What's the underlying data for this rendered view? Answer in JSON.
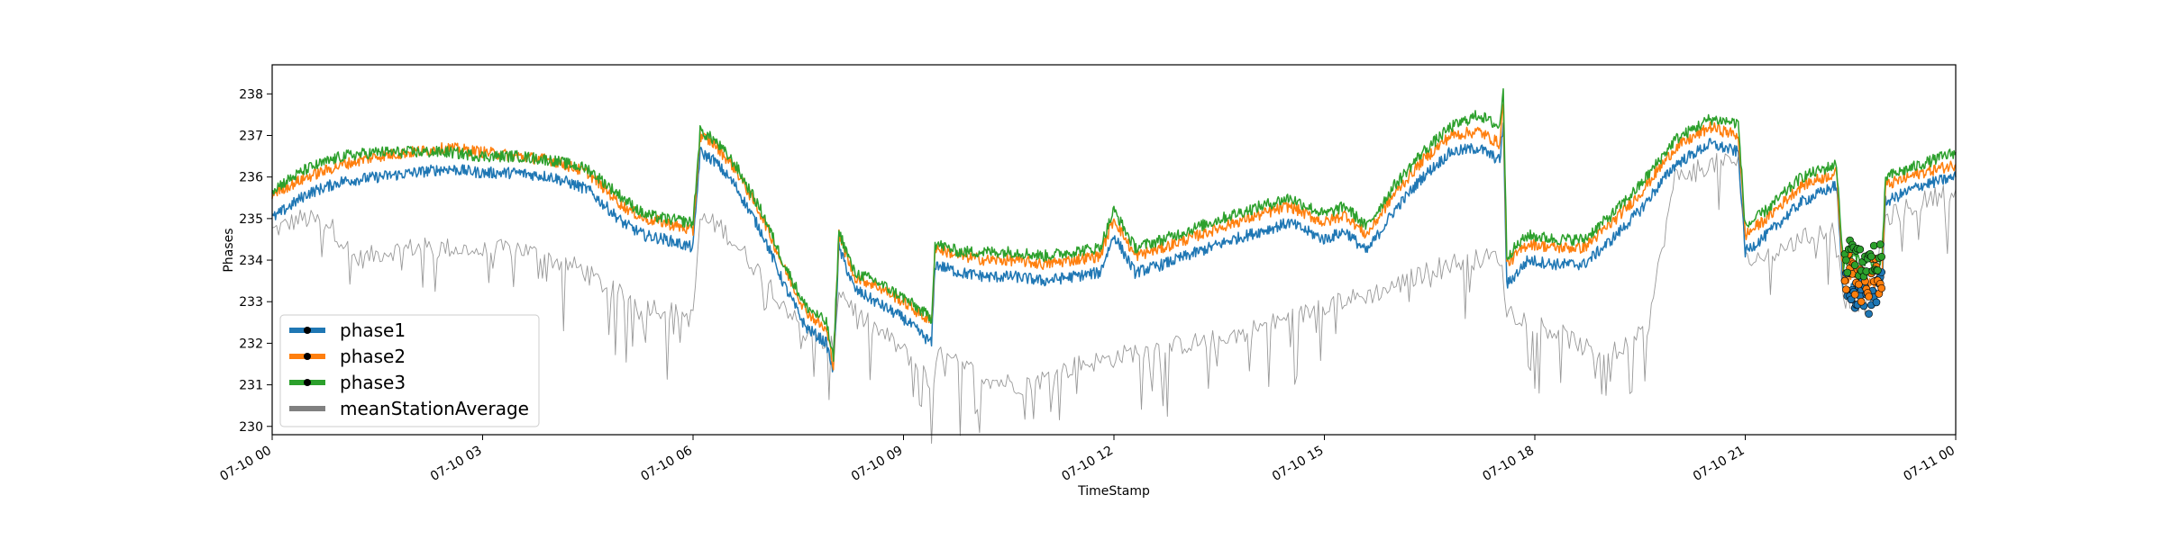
{
  "chart_data": {
    "type": "line",
    "title": "",
    "xlabel": "TimeStamp",
    "ylabel": "Phases",
    "x_ticks": [
      {
        "label": "07-10 00",
        "hour": 0
      },
      {
        "label": "07-10 03",
        "hour": 3
      },
      {
        "label": "07-10 06",
        "hour": 6
      },
      {
        "label": "07-10 09",
        "hour": 9
      },
      {
        "label": "07-10 12",
        "hour": 12
      },
      {
        "label": "07-10 15",
        "hour": 15
      },
      {
        "label": "07-10 18",
        "hour": 18
      },
      {
        "label": "07-10 21",
        "hour": 21
      },
      {
        "label": "07-11 00",
        "hour": 24
      }
    ],
    "xlim_hours": [
      0,
      24
    ],
    "y_ticks": [
      230,
      231,
      232,
      233,
      234,
      235,
      236,
      237,
      238
    ],
    "ylim": [
      229.8,
      238.7
    ],
    "grid": false,
    "legend_position": "lower-left",
    "series": [
      {
        "name": "phase1",
        "color": "#1f77b4",
        "points": [
          [
            0,
            235.0
          ],
          [
            0.5,
            235.6
          ],
          [
            1,
            235.9
          ],
          [
            1.5,
            236.0
          ],
          [
            2,
            236.1
          ],
          [
            2.5,
            236.2
          ],
          [
            3,
            236.1
          ],
          [
            3.5,
            236.1
          ],
          [
            4,
            236.0
          ],
          [
            4.5,
            235.7
          ],
          [
            5,
            234.9
          ],
          [
            5.3,
            234.6
          ],
          [
            5.6,
            234.5
          ],
          [
            6,
            234.3
          ],
          [
            6.1,
            236.6
          ],
          [
            6.3,
            236.4
          ],
          [
            6.6,
            235.8
          ],
          [
            7,
            234.6
          ],
          [
            7.3,
            233.4
          ],
          [
            7.6,
            232.4
          ],
          [
            7.9,
            232.0
          ],
          [
            8.0,
            231.3
          ],
          [
            8.08,
            234.3
          ],
          [
            8.3,
            233.3
          ],
          [
            8.6,
            233.0
          ],
          [
            9.0,
            232.6
          ],
          [
            9.4,
            232.0
          ],
          [
            9.45,
            233.9
          ],
          [
            9.8,
            233.7
          ],
          [
            10.2,
            233.6
          ],
          [
            10.6,
            233.6
          ],
          [
            11.0,
            233.5
          ],
          [
            11.4,
            233.6
          ],
          [
            11.8,
            233.7
          ],
          [
            12.0,
            234.6
          ],
          [
            12.3,
            233.7
          ],
          [
            12.7,
            233.9
          ],
          [
            13.2,
            234.2
          ],
          [
            13.7,
            234.5
          ],
          [
            14.1,
            234.7
          ],
          [
            14.5,
            234.9
          ],
          [
            15.0,
            234.5
          ],
          [
            15.3,
            234.7
          ],
          [
            15.6,
            234.2
          ],
          [
            16.0,
            235.2
          ],
          [
            16.4,
            236.0
          ],
          [
            16.8,
            236.6
          ],
          [
            17.2,
            236.7
          ],
          [
            17.5,
            236.4
          ],
          [
            17.55,
            237.3
          ],
          [
            17.6,
            233.4
          ],
          [
            17.9,
            234.0
          ],
          [
            18.3,
            233.9
          ],
          [
            18.7,
            233.9
          ],
          [
            19.1,
            234.5
          ],
          [
            19.5,
            235.2
          ],
          [
            20.0,
            236.3
          ],
          [
            20.5,
            236.8
          ],
          [
            20.9,
            236.6
          ],
          [
            21.0,
            234.2
          ],
          [
            21.3,
            234.6
          ],
          [
            21.8,
            235.4
          ],
          [
            22.3,
            235.8
          ],
          [
            22.4,
            233.2
          ],
          [
            22.55,
            233.4
          ],
          [
            22.8,
            233.1
          ],
          [
            22.95,
            233.3
          ],
          [
            23.0,
            235.4
          ],
          [
            23.5,
            235.8
          ],
          [
            24.0,
            236.0
          ]
        ]
      },
      {
        "name": "phase2",
        "color": "#ff7f0e",
        "points": [
          [
            0,
            235.6
          ],
          [
            0.5,
            236.0
          ],
          [
            1,
            236.3
          ],
          [
            1.5,
            236.5
          ],
          [
            2,
            236.6
          ],
          [
            2.5,
            236.7
          ],
          [
            3,
            236.6
          ],
          [
            3.5,
            236.5
          ],
          [
            4,
            236.4
          ],
          [
            4.5,
            236.1
          ],
          [
            5,
            235.3
          ],
          [
            5.3,
            235.0
          ],
          [
            5.6,
            234.9
          ],
          [
            6,
            234.7
          ],
          [
            6.1,
            237.0
          ],
          [
            6.3,
            236.8
          ],
          [
            6.6,
            236.2
          ],
          [
            7,
            235.0
          ],
          [
            7.3,
            233.8
          ],
          [
            7.6,
            232.8
          ],
          [
            7.9,
            232.3
          ],
          [
            8.0,
            231.5
          ],
          [
            8.08,
            234.6
          ],
          [
            8.3,
            233.6
          ],
          [
            8.6,
            233.4
          ],
          [
            9.0,
            233.0
          ],
          [
            9.4,
            232.5
          ],
          [
            9.45,
            234.3
          ],
          [
            9.8,
            234.1
          ],
          [
            10.2,
            234.0
          ],
          [
            10.6,
            234.0
          ],
          [
            11.0,
            233.9
          ],
          [
            11.4,
            234.0
          ],
          [
            11.8,
            234.1
          ],
          [
            12.0,
            235.0
          ],
          [
            12.3,
            234.1
          ],
          [
            12.7,
            234.3
          ],
          [
            13.2,
            234.6
          ],
          [
            13.7,
            234.9
          ],
          [
            14.1,
            235.1
          ],
          [
            14.5,
            235.3
          ],
          [
            15.0,
            234.9
          ],
          [
            15.3,
            235.1
          ],
          [
            15.6,
            234.6
          ],
          [
            16.0,
            235.6
          ],
          [
            16.4,
            236.4
          ],
          [
            16.8,
            237.0
          ],
          [
            17.2,
            237.1
          ],
          [
            17.5,
            236.8
          ],
          [
            17.55,
            237.8
          ],
          [
            17.6,
            233.9
          ],
          [
            17.9,
            234.4
          ],
          [
            18.3,
            234.3
          ],
          [
            18.7,
            234.3
          ],
          [
            19.1,
            234.9
          ],
          [
            19.5,
            235.6
          ],
          [
            20.0,
            236.7
          ],
          [
            20.5,
            237.2
          ],
          [
            20.9,
            237.0
          ],
          [
            21.0,
            234.6
          ],
          [
            21.3,
            235.0
          ],
          [
            21.8,
            235.8
          ],
          [
            22.3,
            236.1
          ],
          [
            22.4,
            233.5
          ],
          [
            22.55,
            233.7
          ],
          [
            22.8,
            233.4
          ],
          [
            22.95,
            233.6
          ],
          [
            23.0,
            235.8
          ],
          [
            23.5,
            236.1
          ],
          [
            24.0,
            236.3
          ]
        ]
      },
      {
        "name": "phase3",
        "color": "#2ca02c",
        "points": [
          [
            0,
            235.7
          ],
          [
            0.5,
            236.2
          ],
          [
            1,
            236.5
          ],
          [
            1.5,
            236.6
          ],
          [
            2,
            236.6
          ],
          [
            2.5,
            236.6
          ],
          [
            3,
            236.5
          ],
          [
            3.5,
            236.5
          ],
          [
            4,
            236.4
          ],
          [
            4.5,
            236.2
          ],
          [
            5,
            235.5
          ],
          [
            5.3,
            235.1
          ],
          [
            5.6,
            235.0
          ],
          [
            6,
            234.9
          ],
          [
            6.1,
            237.1
          ],
          [
            6.3,
            236.9
          ],
          [
            6.6,
            236.3
          ],
          [
            7,
            235.1
          ],
          [
            7.3,
            233.9
          ],
          [
            7.6,
            232.9
          ],
          [
            7.9,
            232.5
          ],
          [
            8.0,
            231.6
          ],
          [
            8.08,
            234.7
          ],
          [
            8.3,
            233.7
          ],
          [
            8.6,
            233.5
          ],
          [
            9.0,
            233.1
          ],
          [
            9.4,
            232.6
          ],
          [
            9.45,
            234.4
          ],
          [
            9.8,
            234.2
          ],
          [
            10.2,
            234.2
          ],
          [
            10.6,
            234.2
          ],
          [
            11.0,
            234.1
          ],
          [
            11.4,
            234.2
          ],
          [
            11.8,
            234.3
          ],
          [
            12.0,
            235.2
          ],
          [
            12.3,
            234.3
          ],
          [
            12.7,
            234.5
          ],
          [
            13.2,
            234.8
          ],
          [
            13.7,
            235.1
          ],
          [
            14.1,
            235.3
          ],
          [
            14.5,
            235.5
          ],
          [
            15.0,
            235.1
          ],
          [
            15.3,
            235.3
          ],
          [
            15.6,
            234.8
          ],
          [
            16.0,
            235.8
          ],
          [
            16.4,
            236.6
          ],
          [
            16.8,
            237.2
          ],
          [
            17.2,
            237.5
          ],
          [
            17.5,
            237.2
          ],
          [
            17.55,
            238.2
          ],
          [
            17.6,
            234.1
          ],
          [
            17.9,
            234.6
          ],
          [
            18.3,
            234.5
          ],
          [
            18.7,
            234.5
          ],
          [
            19.1,
            235.1
          ],
          [
            19.5,
            235.8
          ],
          [
            20.0,
            236.9
          ],
          [
            20.5,
            237.4
          ],
          [
            20.9,
            237.3
          ],
          [
            21.0,
            234.8
          ],
          [
            21.3,
            235.2
          ],
          [
            21.8,
            236.0
          ],
          [
            22.3,
            236.3
          ],
          [
            22.4,
            233.9
          ],
          [
            22.55,
            234.1
          ],
          [
            22.8,
            233.9
          ],
          [
            22.95,
            234.0
          ],
          [
            23.0,
            236.0
          ],
          [
            23.5,
            236.3
          ],
          [
            24.0,
            236.6
          ]
        ]
      },
      {
        "name": "meanStationAverage",
        "color": "#808080",
        "points": [
          [
            0,
            234.7
          ],
          [
            0.4,
            235.0
          ],
          [
            0.8,
            234.9
          ],
          [
            1.2,
            234.0
          ],
          [
            1.6,
            234.2
          ],
          [
            2.0,
            234.3
          ],
          [
            2.5,
            234.3
          ],
          [
            3.0,
            234.2
          ],
          [
            3.5,
            234.3
          ],
          [
            4.0,
            234.0
          ],
          [
            4.4,
            233.8
          ],
          [
            4.8,
            233.3
          ],
          [
            5.2,
            233.0
          ],
          [
            5.6,
            232.8
          ],
          [
            6.0,
            232.6
          ],
          [
            6.1,
            235.0
          ],
          [
            6.4,
            234.8
          ],
          [
            6.8,
            234.0
          ],
          [
            7.2,
            233.2
          ],
          [
            7.6,
            232.2
          ],
          [
            8.0,
            231.9
          ],
          [
            8.08,
            233.3
          ],
          [
            8.4,
            232.6
          ],
          [
            8.8,
            232.1
          ],
          [
            9.2,
            231.5
          ],
          [
            9.4,
            230.9
          ],
          [
            9.5,
            231.7
          ],
          [
            9.9,
            231.4
          ],
          [
            10.3,
            231.1
          ],
          [
            10.7,
            231.0
          ],
          [
            11.1,
            231.2
          ],
          [
            11.5,
            231.5
          ],
          [
            11.9,
            231.6
          ],
          [
            12.3,
            231.8
          ],
          [
            12.7,
            231.9
          ],
          [
            13.1,
            232.0
          ],
          [
            13.5,
            232.1
          ],
          [
            13.9,
            232.3
          ],
          [
            14.3,
            232.5
          ],
          [
            14.7,
            232.7
          ],
          [
            15.1,
            233.0
          ],
          [
            15.5,
            233.1
          ],
          [
            15.9,
            233.3
          ],
          [
            16.3,
            233.6
          ],
          [
            16.7,
            233.9
          ],
          [
            17.1,
            234.0
          ],
          [
            17.5,
            234.1
          ],
          [
            17.6,
            232.8
          ],
          [
            18.0,
            232.5
          ],
          [
            18.4,
            232.2
          ],
          [
            18.8,
            231.8
          ],
          [
            19.2,
            231.8
          ],
          [
            19.6,
            232.3
          ],
          [
            20.0,
            236.0
          ],
          [
            20.5,
            236.3
          ],
          [
            20.9,
            236.4
          ],
          [
            21.0,
            234.0
          ],
          [
            21.3,
            234.1
          ],
          [
            21.8,
            234.5
          ],
          [
            22.3,
            234.8
          ],
          [
            22.4,
            233.1
          ],
          [
            22.8,
            232.9
          ],
          [
            23.0,
            235.0
          ],
          [
            23.5,
            235.4
          ],
          [
            24.0,
            235.7
          ]
        ]
      }
    ],
    "legend": [
      {
        "label": "phase1",
        "color": "#1f77b4"
      },
      {
        "label": "phase2",
        "color": "#ff7f0e"
      },
      {
        "label": "phase3",
        "color": "#2ca02c"
      },
      {
        "label": "meanStationAverage",
        "color": "#808080"
      }
    ]
  }
}
